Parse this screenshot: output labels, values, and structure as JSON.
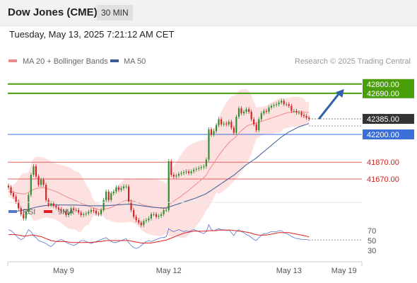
{
  "header": {
    "title": "Dow Jones (CME)",
    "timeframe": "30 MIN"
  },
  "datetime": "Tuesday, May 13, 2025 7:21:12 AM CET",
  "legend": {
    "items": [
      {
        "label": "MA 20 + Bollinger Bands",
        "color": "#f08a8a"
      },
      {
        "label": "MA 50",
        "color": "#3a5a98"
      }
    ]
  },
  "credit": "Research © 2025 Trading Central",
  "colors": {
    "green": "#4a9e0a",
    "blue_level": "#3a6fd8",
    "red_level": "#e86060",
    "candle_up": "#2d8a2d",
    "candle_down": "#d02020",
    "band_fill": "#fde0e0",
    "ma20": "#f08a8a",
    "ma50": "#3a5a98",
    "arrow": "#2e5fa8",
    "current_tag": "#333333",
    "rsi": "#5577cc",
    "rsi_ma": "#e02020"
  },
  "chart_data": [
    {
      "type": "candlestick",
      "y_range": [
        41400,
        43000
      ],
      "x_range": [
        0,
        140
      ],
      "x_ticks": [
        {
          "label": "May 9",
          "x": 22
        },
        {
          "label": "May 12",
          "x": 64
        },
        {
          "label": "May 13",
          "x": 112
        },
        {
          "label": "May 19",
          "x": 134
        }
      ],
      "levels": [
        {
          "value": 42800,
          "label": "42800.00",
          "kind": "resistance"
        },
        {
          "value": 42690,
          "label": "42690.00",
          "kind": "resistance"
        },
        {
          "value": 42200,
          "label": "42200.00",
          "kind": "pivot"
        },
        {
          "value": 41870,
          "label": "41870.00",
          "kind": "support"
        },
        {
          "value": 41670,
          "label": "41670.00",
          "kind": "support"
        }
      ],
      "current_price": {
        "value": 42385,
        "label": "42385.00"
      },
      "forecast_arrow": {
        "from": {
          "x": 124,
          "y": 42385
        },
        "to": {
          "x": 134,
          "y": 42740
        }
      },
      "closes": [
        41570,
        41500,
        41460,
        41400,
        41320,
        41250,
        41200,
        41280,
        41480,
        41720,
        41820,
        41700,
        41600,
        41660,
        41600,
        41420,
        41360,
        41380,
        41350,
        41330,
        41310,
        41290,
        41290,
        41240,
        41260,
        41320,
        41300,
        41300,
        41270,
        41240,
        41250,
        41260,
        41280,
        41300,
        41290,
        41260,
        41250,
        41300,
        41420,
        41520,
        41420,
        41500,
        41520,
        41570,
        41540,
        41560,
        41580,
        41580,
        41400,
        41300,
        41220,
        41180,
        41150,
        41120,
        41170,
        41180,
        41200,
        41250,
        41250,
        41220,
        41230,
        41250,
        41300,
        41300,
        41880,
        41720,
        41700,
        41710,
        41730,
        41740,
        41750,
        41760,
        41740,
        41760,
        41780,
        41790,
        41800,
        41810,
        41820,
        41900,
        42260,
        42200,
        42240,
        42310,
        42380,
        42320,
        42330,
        42320,
        42350,
        42280,
        42220,
        42410,
        42510,
        42450,
        42470,
        42500,
        42470,
        42380,
        42320,
        42250,
        42380,
        42450,
        42480,
        42470,
        42520,
        42540,
        42550,
        42560,
        42580,
        42600,
        42560,
        42560,
        42540,
        42480,
        42480,
        42460,
        42460,
        42430,
        42420,
        42400,
        42385
      ],
      "ma20": [
        41520,
        41515,
        41510,
        41505,
        41500,
        41495,
        41490,
        41495,
        41510,
        41530,
        41545,
        41555,
        41560,
        41565,
        41565,
        41560,
        41550,
        41540,
        41530,
        41520,
        41505,
        41490,
        41475,
        41460,
        41445,
        41435,
        41420,
        41410,
        41395,
        41380,
        41370,
        41360,
        41345,
        41335,
        41325,
        41315,
        41305,
        41300,
        41305,
        41315,
        41320,
        41330,
        41345,
        41360,
        41375,
        41390,
        41405,
        41415,
        41415,
        41410,
        41405,
        41395,
        41385,
        41370,
        41360,
        41350,
        41345,
        41340,
        41335,
        41330,
        41325,
        41320,
        41320,
        41320,
        41360,
        41385,
        41405,
        41425,
        41445,
        41465,
        41490,
        41510,
        41535,
        41560,
        41585,
        41610,
        41635,
        41660,
        41685,
        41715,
        41770,
        41815,
        41860,
        41905,
        41950,
        41990,
        42030,
        42065,
        42100,
        42130,
        42150,
        42180,
        42215,
        42245,
        42270,
        42295,
        42310,
        42320,
        42330,
        42335,
        42345,
        42355,
        42365,
        42375,
        42385,
        42395,
        42405,
        42415,
        42425,
        42435,
        42445,
        42455,
        42460,
        42465,
        42470,
        42470,
        42470,
        42468,
        42465,
        42462,
        42460
      ],
      "ma50": [
        41270,
        41275,
        41280,
        41285,
        41290,
        41295,
        41300,
        41305,
        41310,
        41318,
        41326,
        41334,
        41340,
        41345,
        41350,
        41354,
        41356,
        41358,
        41360,
        41360,
        41360,
        41360,
        41360,
        41360,
        41360,
        41360,
        41360,
        41360,
        41358,
        41356,
        41354,
        41352,
        41350,
        41350,
        41350,
        41350,
        41350,
        41350,
        41350,
        41352,
        41354,
        41356,
        41358,
        41360,
        41362,
        41364,
        41366,
        41368,
        41368,
        41366,
        41364,
        41360,
        41356,
        41352,
        41348,
        41344,
        41340,
        41336,
        41332,
        41330,
        41328,
        41326,
        41325,
        41325,
        41335,
        41345,
        41355,
        41365,
        41375,
        41385,
        41395,
        41405,
        41415,
        41425,
        41435,
        41445,
        41458,
        41470,
        41482,
        41495,
        41515,
        41535,
        41555,
        41575,
        41595,
        41615,
        41635,
        41655,
        41675,
        41695,
        41715,
        41740,
        41765,
        41790,
        41815,
        41840,
        41860,
        41880,
        41900,
        41920,
        41945,
        41970,
        41995,
        42020,
        42045,
        42070,
        42095,
        42120,
        42145,
        42170,
        42190,
        42210,
        42230,
        42245,
        42260,
        42275,
        42290,
        42300,
        42310,
        42320,
        42330
      ]
    },
    {
      "type": "line",
      "name": "RSI",
      "ma_name": "9MA",
      "y_range": [
        10,
        90
      ],
      "y_ticks": [
        70,
        50,
        30
      ],
      "rsi": [
        72,
        70,
        66,
        60,
        55,
        52,
        54,
        62,
        72,
        68,
        60,
        56,
        50,
        48,
        46,
        44,
        40,
        38,
        42,
        48,
        50,
        52,
        50,
        46,
        44,
        42,
        40,
        42,
        46,
        50,
        50,
        48,
        46,
        44,
        46,
        48,
        50,
        52,
        54,
        56,
        52,
        48,
        46,
        46,
        48,
        50,
        52,
        54,
        46,
        40,
        36,
        34,
        36,
        40,
        44,
        48,
        50,
        48,
        50,
        52,
        54,
        56,
        56,
        58,
        74,
        70,
        68,
        70,
        72,
        70,
        68,
        70,
        68,
        70,
        72,
        70,
        68,
        66,
        64,
        68,
        82,
        72,
        70,
        72,
        74,
        72,
        72,
        70,
        72,
        66,
        60,
        68,
        72,
        68,
        66,
        62,
        60,
        56,
        52,
        50,
        56,
        60,
        64,
        64,
        66,
        68,
        68,
        68,
        70,
        70,
        66,
        64,
        62,
        58,
        56,
        54,
        54,
        52,
        52,
        52,
        51
      ],
      "rsi_ma": [
        62,
        62,
        62,
        62,
        61,
        60,
        59,
        59,
        60,
        61,
        61,
        60,
        59,
        58,
        56,
        54,
        52,
        50,
        49,
        48,
        48,
        48,
        48,
        48,
        47,
        46,
        46,
        46,
        46,
        46,
        46,
        46,
        46,
        46,
        47,
        47,
        48,
        48,
        49,
        50,
        50,
        50,
        50,
        50,
        50,
        50,
        50,
        50,
        50,
        49,
        48,
        47,
        46,
        45,
        45,
        45,
        45,
        45,
        46,
        47,
        48,
        49,
        50,
        51,
        53,
        55,
        57,
        59,
        61,
        63,
        65,
        66,
        67,
        68,
        69,
        69,
        69,
        69,
        69,
        69,
        70,
        70,
        70,
        70,
        71,
        71,
        71,
        71,
        71,
        71,
        70,
        70,
        69,
        69,
        68,
        67,
        66,
        65,
        63,
        62,
        61,
        61,
        61,
        61,
        62,
        63,
        64,
        65,
        66,
        66,
        66,
        66,
        66,
        65,
        64,
        63,
        62,
        61,
        60,
        59,
        57
      ]
    }
  ]
}
